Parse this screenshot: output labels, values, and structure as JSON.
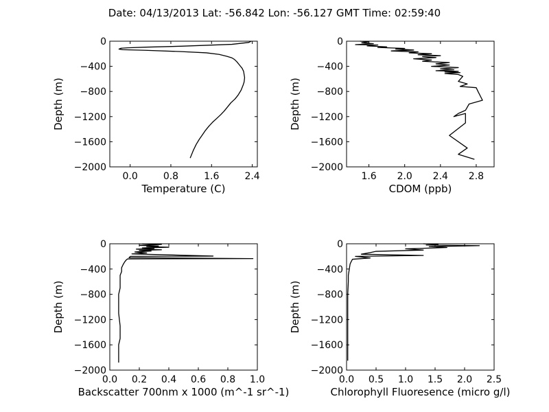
{
  "title": "Date: 04/13/2013  Lat:  -56.842 Lon:  -56.127  GMT Time: 02:59:40",
  "chart_data": [
    {
      "type": "line",
      "xlabel": "Temperature (C)",
      "ylabel": "Depth (m)",
      "xlim": [
        -0.4,
        2.5
      ],
      "ylim": [
        -2000,
        0
      ],
      "xticks": [
        0.0,
        0.8,
        1.6,
        2.4
      ],
      "xtick_labels": [
        "0.0",
        "0.8",
        "1.6",
        "2.4"
      ],
      "yticks": [
        0,
        -400,
        -800,
        -1200,
        -1600,
        -2000
      ],
      "ytick_labels": [
        "0",
        "−400",
        "−800",
        "−1200",
        "−1600",
        "−2000"
      ],
      "grid": false,
      "series": [
        {
          "x": [
            2.38,
            2.33,
            2.0,
            1.0,
            0.3,
            -0.05,
            -0.18,
            -0.22,
            -0.15,
            0.3,
            1.0,
            1.5,
            1.75,
            1.9,
            2.0,
            2.05,
            2.1,
            2.14,
            2.17,
            2.2,
            2.23,
            2.25,
            2.24,
            2.22,
            2.18,
            2.12,
            2.06,
            1.98,
            1.92,
            1.85,
            1.78,
            1.7,
            1.62,
            1.55,
            1.48,
            1.42,
            1.36,
            1.3,
            1.24,
            1.18
          ],
          "y": [
            0,
            -20,
            -50,
            -80,
            -95,
            -105,
            -112,
            -125,
            -135,
            -145,
            -165,
            -185,
            -210,
            -240,
            -265,
            -290,
            -330,
            -370,
            -400,
            -430,
            -480,
            -580,
            -650,
            -700,
            -780,
            -860,
            -920,
            -980,
            -1040,
            -1110,
            -1170,
            -1230,
            -1290,
            -1350,
            -1420,
            -1490,
            -1560,
            -1640,
            -1740,
            -1860
          ]
        }
      ]
    },
    {
      "type": "line",
      "xlabel": "CDOM (ppb)",
      "ylabel": "Depth (m)",
      "xlim": [
        1.35,
        3.0
      ],
      "ylim": [
        -2000,
        0
      ],
      "xticks": [
        1.6,
        2.0,
        2.4,
        2.8
      ],
      "xtick_labels": [
        "1.6",
        "2.0",
        "2.4",
        "2.8"
      ],
      "yticks": [
        0,
        -400,
        -800,
        -1200,
        -1600,
        -2000
      ],
      "ytick_labels": [
        "0",
        "−400",
        "−800",
        "−1200",
        "−1600",
        "−2000"
      ],
      "grid": false,
      "series": [
        {
          "x": [
            1.5,
            1.6,
            1.52,
            1.65,
            1.45,
            1.7,
            1.58,
            1.8,
            1.7,
            2.0,
            1.9,
            2.1,
            1.85,
            2.15,
            2.05,
            2.3,
            2.15,
            2.4,
            2.2,
            2.35,
            2.1,
            2.3,
            2.2,
            2.5,
            2.35,
            2.5,
            2.3,
            2.6,
            2.4,
            2.55,
            2.35,
            2.6,
            2.45,
            2.62,
            2.45,
            2.6,
            2.65,
            2.6,
            2.7,
            2.62,
            2.8,
            2.82,
            2.87,
            2.72,
            2.68,
            2.6,
            2.55,
            2.68,
            2.68,
            2.5,
            2.7,
            2.6,
            2.78
          ],
          "y": [
            0,
            -10,
            -25,
            -40,
            -55,
            -60,
            -75,
            -90,
            -100,
            -115,
            -125,
            -140,
            -155,
            -170,
            -185,
            -200,
            -215,
            -230,
            -245,
            -260,
            -280,
            -300,
            -320,
            -340,
            -360,
            -380,
            -400,
            -420,
            -440,
            -455,
            -470,
            -480,
            -490,
            -500,
            -515,
            -530,
            -560,
            -640,
            -680,
            -720,
            -740,
            -800,
            -940,
            -1000,
            -1100,
            -1150,
            -1200,
            -1150,
            -1300,
            -1500,
            -1700,
            -1800,
            -1880
          ]
        }
      ]
    },
    {
      "type": "line",
      "xlabel": "Backscatter 700nm x 1000 (m^-1 sr^-1)",
      "ylabel": "Depth (m)",
      "xlim": [
        0.0,
        1.0
      ],
      "ylim": [
        -2000,
        0
      ],
      "xticks": [
        0.0,
        0.2,
        0.4,
        0.6,
        0.8,
        1.0
      ],
      "xtick_labels": [
        "0.0",
        "0.2",
        "0.4",
        "0.6",
        "0.8",
        "1.0"
      ],
      "yticks": [
        0,
        -400,
        -800,
        -1200,
        -1600,
        -2000
      ],
      "ytick_labels": [
        "0",
        "−400",
        "−800",
        "−1200",
        "−1600",
        "−2000"
      ],
      "grid": false,
      "series": [
        {
          "x": [
            0.22,
            0.35,
            0.2,
            0.33,
            0.25,
            0.4,
            0.22,
            0.3,
            0.18,
            0.35,
            0.2,
            0.28,
            0.17,
            0.25,
            0.15,
            0.7,
            0.14,
            0.13,
            0.97,
            0.12,
            0.11,
            0.1,
            0.09,
            0.08,
            0.08,
            0.07,
            0.07,
            0.07,
            0.06,
            0.06,
            0.06,
            0.06,
            0.07,
            0.07,
            0.06,
            0.06,
            0.06
          ],
          "y": [
            0,
            -10,
            -25,
            -35,
            -45,
            -55,
            -65,
            -75,
            -85,
            -95,
            -105,
            -115,
            -130,
            -145,
            -160,
            -195,
            -200,
            -220,
            -235,
            -240,
            -260,
            -290,
            -330,
            -380,
            -440,
            -500,
            -600,
            -700,
            -800,
            -900,
            -1000,
            -1100,
            -1300,
            -1500,
            -1600,
            -1700,
            -1880
          ]
        }
      ]
    },
    {
      "type": "line",
      "xlabel": "Chlorophyll Fluoresence (micro g/l)",
      "ylabel": "Depth (m)",
      "xlim": [
        0.0,
        2.5
      ],
      "ylim": [
        -2000,
        0
      ],
      "xticks": [
        0.0,
        0.5,
        1.0,
        1.5,
        2.0,
        2.5
      ],
      "xtick_labels": [
        "0.0",
        "0.5",
        "1.0",
        "1.5",
        "2.0",
        "2.5"
      ],
      "yticks": [
        0,
        -400,
        -800,
        -1200,
        -1600,
        -2000
      ],
      "ytick_labels": [
        "0",
        "−400",
        "−800",
        "−1200",
        "−1600",
        "−2000"
      ],
      "grid": false,
      "series": [
        {
          "x": [
            1.3,
            1.55,
            1.35,
            2.25,
            1.4,
            1.7,
            1.0,
            1.3,
            0.5,
            0.4,
            0.25,
            1.3,
            0.15,
            0.4,
            0.1,
            0.08,
            0.06,
            0.05,
            0.04,
            0.03,
            0.03,
            0.02,
            0.02,
            0.02,
            0.02,
            0.02,
            0.02
          ],
          "y": [
            0,
            -10,
            -20,
            -30,
            -45,
            -60,
            -80,
            -100,
            -120,
            -140,
            -165,
            -185,
            -200,
            -225,
            -245,
            -280,
            -320,
            -380,
            -440,
            -500,
            -600,
            -800,
            -1000,
            -1200,
            -1500,
            -1700,
            -1850
          ]
        }
      ]
    }
  ]
}
